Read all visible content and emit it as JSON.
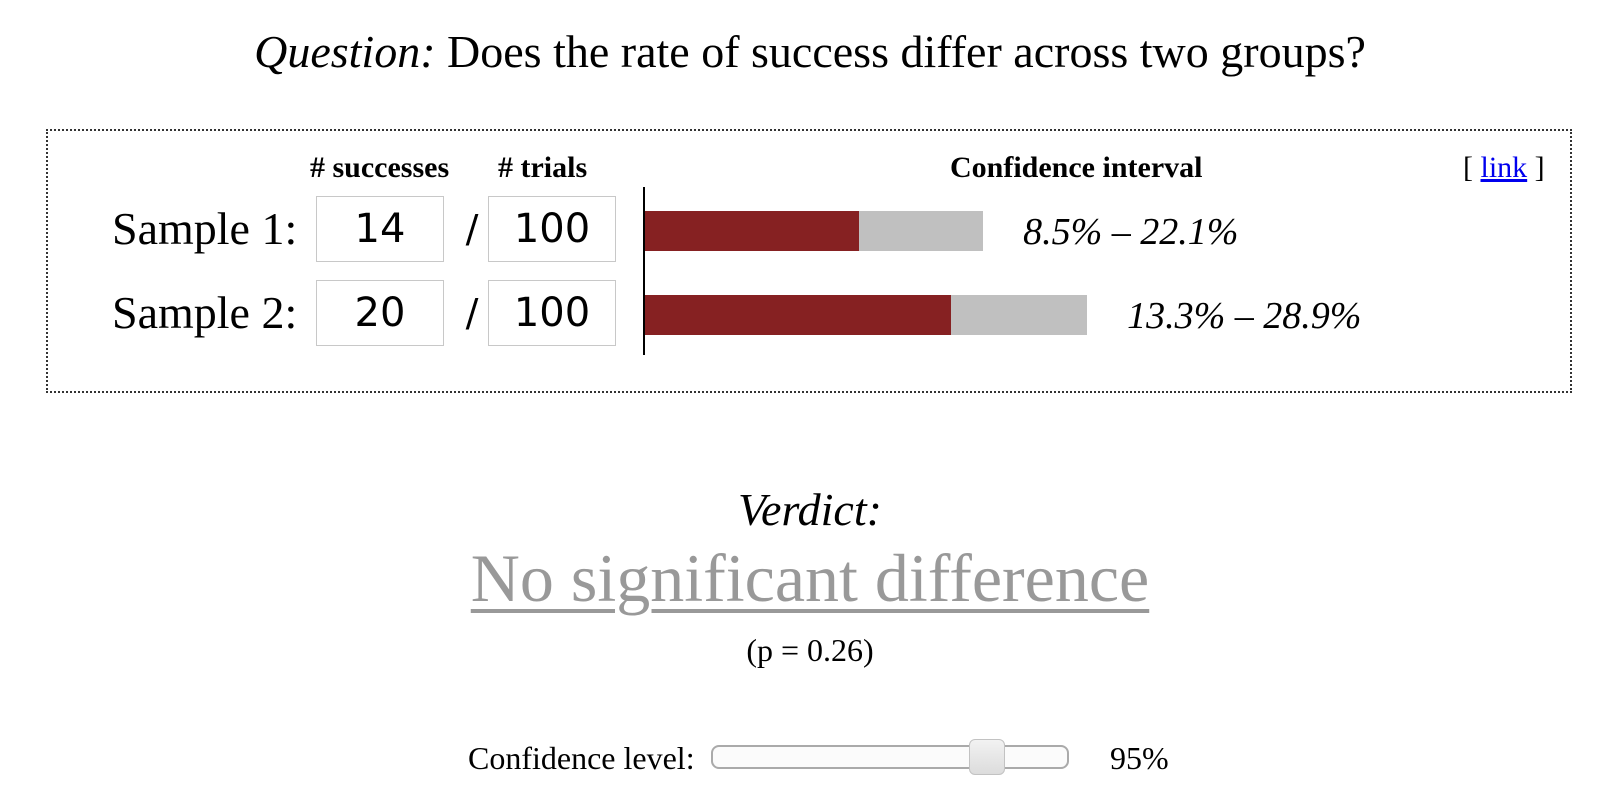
{
  "question": {
    "prefix": "Question:",
    "text": "Does the rate of success differ across two groups?"
  },
  "headers": {
    "successes": "# successes",
    "trials": "# trials",
    "confidence_interval": "Confidence interval"
  },
  "link": {
    "open": "[",
    "label": "link",
    "close": "]"
  },
  "samples": [
    {
      "label": "Sample 1:",
      "successes": "14",
      "separator": "/",
      "trials": "100",
      "ci_text": "8.5% – 22.1%",
      "ci_low": 0.085,
      "point": 0.14,
      "ci_high": 0.221
    },
    {
      "label": "Sample 2:",
      "successes": "20",
      "separator": "/",
      "trials": "100",
      "ci_text": "13.3% – 28.9%",
      "ci_low": 0.133,
      "point": 0.2,
      "ci_high": 0.289
    }
  ],
  "colors": {
    "point_bar": "#862122",
    "interval_bar": "#c0c0c0",
    "verdict_text": "#999999",
    "link": "#0000ee"
  },
  "verdict": {
    "label": "Verdict:",
    "text": "No significant difference",
    "p_value": "(p = 0.26)"
  },
  "confidence": {
    "label": "Confidence level:",
    "value_text": "95%",
    "value": 0.95,
    "slider_fraction": 0.8
  }
}
